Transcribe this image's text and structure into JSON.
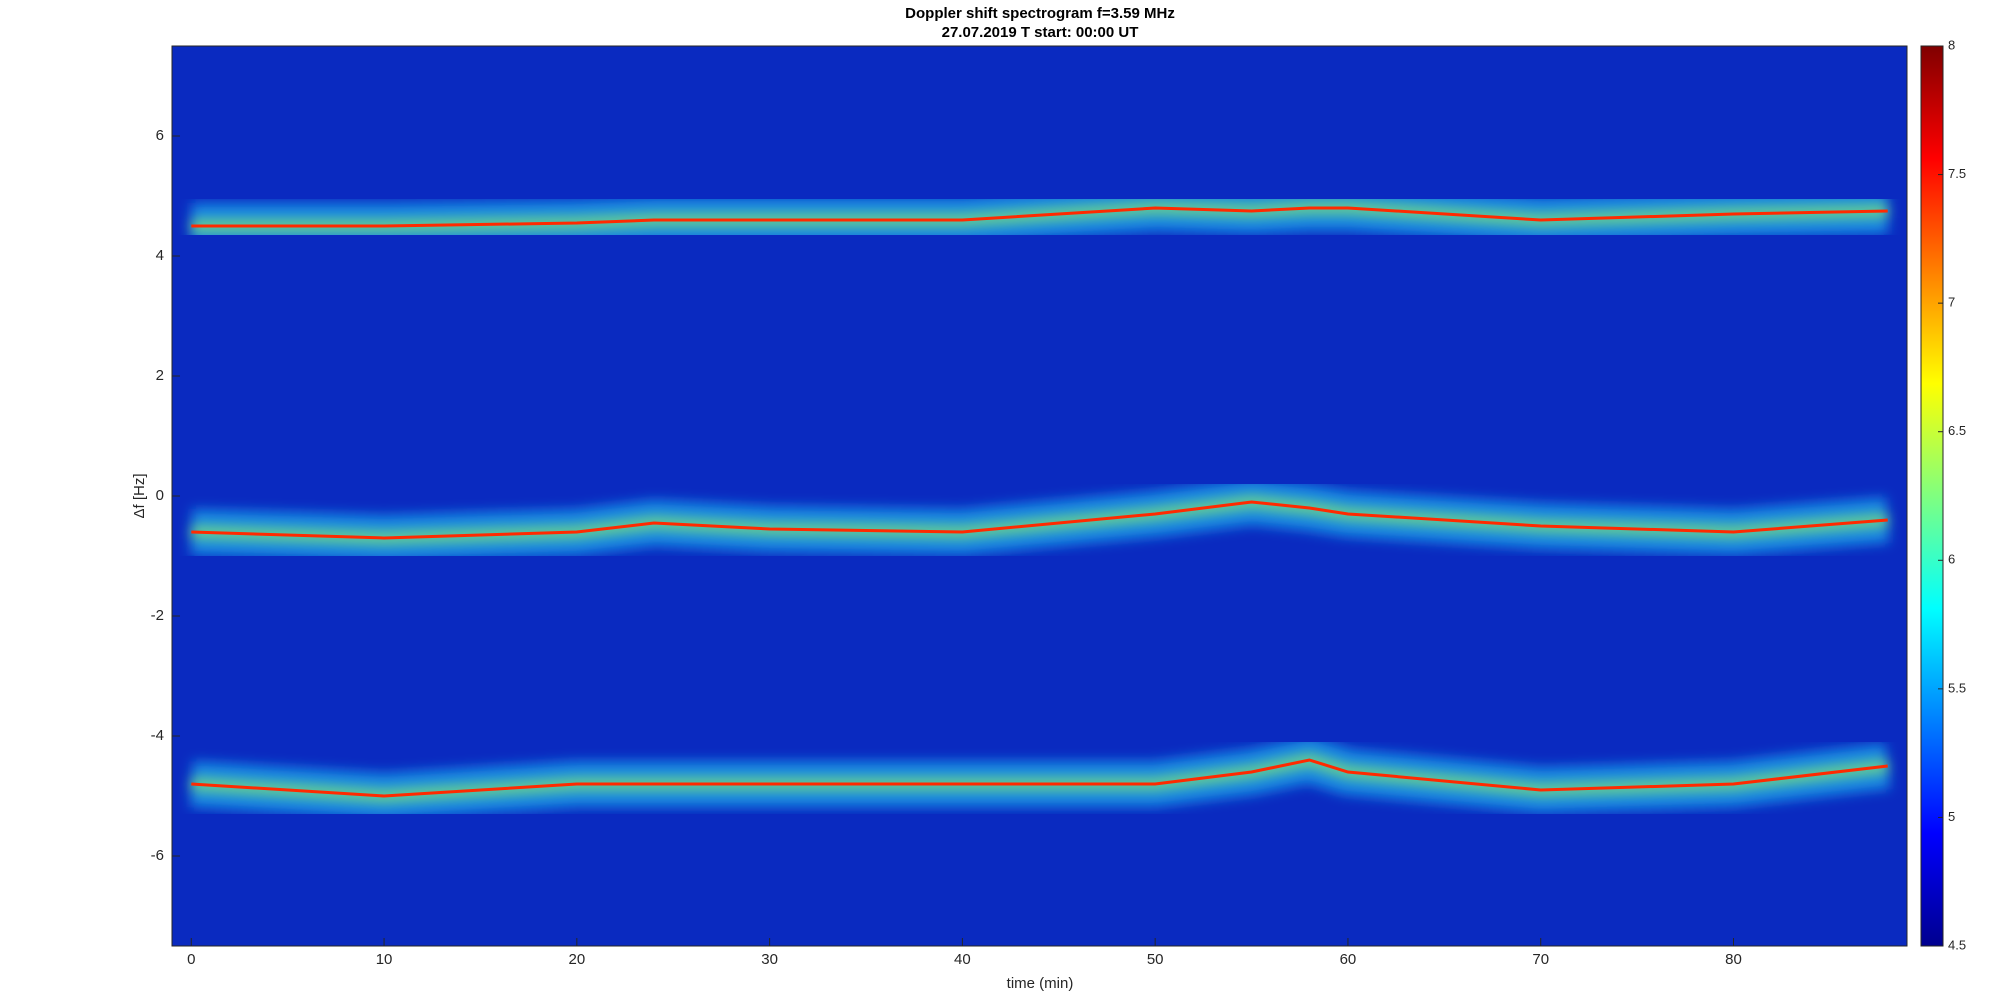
{
  "chart_data": {
    "type": "spectrogram",
    "title": "Doppler shift spectrogram f=3.59 MHz",
    "subtitle": "27.07.2019   T start: 00:00 UT",
    "x_label": "time (min)",
    "y_label": "Δf [Hz]",
    "xlim": [
      -1,
      89
    ],
    "ylim": [
      -7.5,
      7.5
    ],
    "xticks": [
      0,
      10,
      20,
      30,
      40,
      50,
      60,
      70,
      80
    ],
    "yticks": [
      -6,
      -4,
      -2,
      0,
      2,
      4,
      6
    ],
    "clim": [
      4.5,
      8
    ],
    "cticks": [
      4.5,
      5,
      5.5,
      6,
      6.5,
      7,
      7.5,
      8
    ],
    "colormap": "jet",
    "background_color": "#0a2ac0",
    "x": [
      0,
      10,
      20,
      24,
      30,
      40,
      50,
      55,
      58,
      60,
      70,
      80,
      88
    ],
    "series": [
      {
        "color": "#ff2a00",
        "values": [
          4.5,
          4.5,
          4.55,
          4.6,
          4.6,
          4.6,
          4.8,
          4.75,
          4.8,
          4.8,
          4.6,
          4.7,
          4.75
        ]
      },
      {
        "color": "#ff2a00",
        "values": [
          -0.6,
          -0.7,
          -0.6,
          -0.45,
          -0.55,
          -0.6,
          -0.3,
          -0.1,
          -0.2,
          -0.3,
          -0.5,
          -0.6,
          -0.4
        ]
      },
      {
        "color": "#ff2a00",
        "values": [
          -4.8,
          -5.0,
          -4.8,
          -4.8,
          -4.8,
          -4.8,
          -4.8,
          -4.6,
          -4.4,
          -4.6,
          -4.9,
          -4.8,
          -4.5
        ]
      }
    ]
  }
}
